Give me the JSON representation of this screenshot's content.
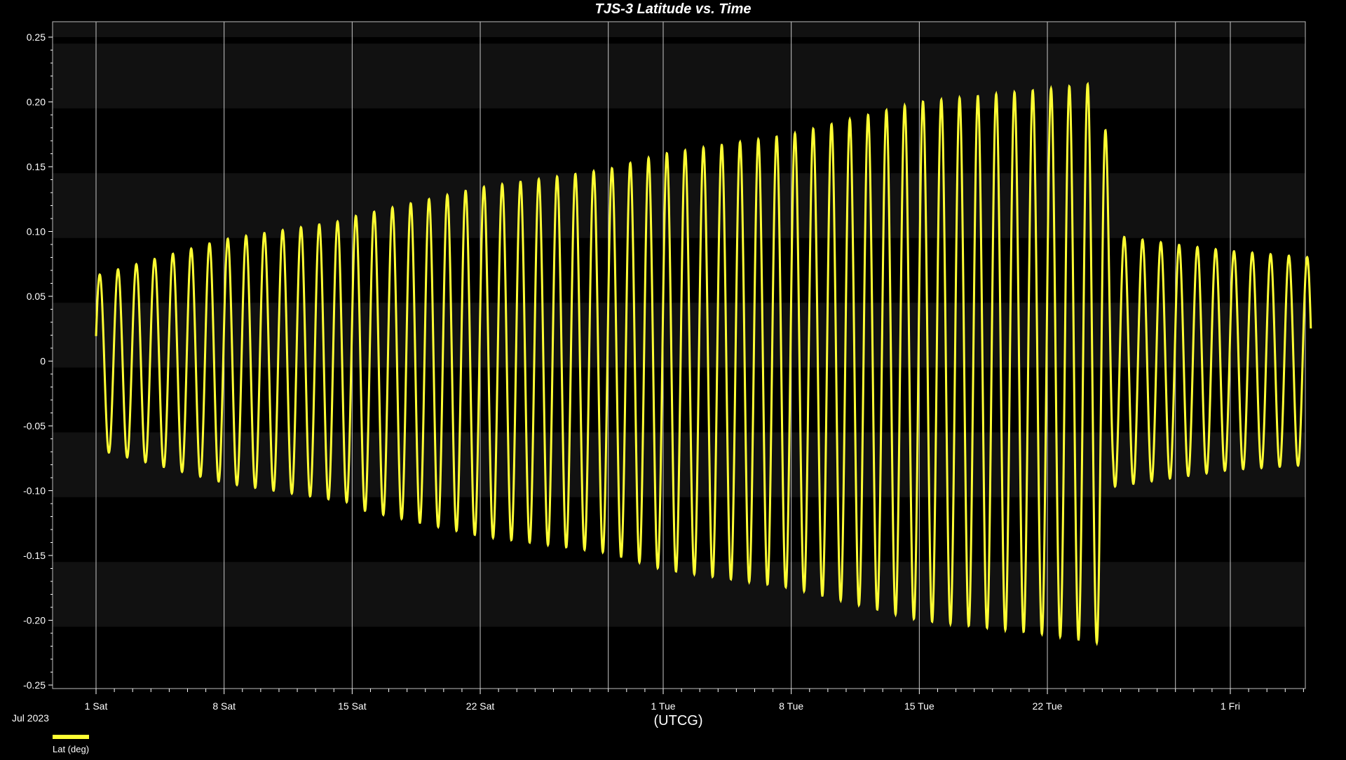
{
  "chart_data": {
    "type": "line",
    "title": "TJS-3 Latitude vs. Time",
    "xlabel": "(UTCG)",
    "ylabel": "",
    "month_label": "Jul 2023",
    "x_tick_labels": [
      {
        "day": 1,
        "label": "1 Sat"
      },
      {
        "day": 8,
        "label": "8 Sat"
      },
      {
        "day": 15,
        "label": "15 Sat"
      },
      {
        "day": 22,
        "label": "22 Sat"
      },
      {
        "day": 32,
        "label": "1 Tue"
      },
      {
        "day": 39,
        "label": "8 Tue"
      },
      {
        "day": 46,
        "label": "15 Tue"
      },
      {
        "day": 53,
        "label": "22 Tue"
      },
      {
        "day": 63,
        "label": "1 Fri"
      }
    ],
    "xlim_days": [
      1,
      67.4
    ],
    "ylim": [
      -0.255,
      0.263
    ],
    "y_ticks": [
      {
        "value": 0.25,
        "label": "0.25"
      },
      {
        "value": 0.2,
        "label": "0.20"
      },
      {
        "value": 0.15,
        "label": "0.15"
      },
      {
        "value": 0.1,
        "label": "0.10"
      },
      {
        "value": 0.05,
        "label": "0.05"
      },
      {
        "value": 0,
        "label": "0"
      },
      {
        "value": -0.05,
        "label": "-0.05"
      },
      {
        "value": -0.1,
        "label": "-0.10"
      },
      {
        "value": -0.15,
        "label": "-0.15"
      },
      {
        "value": -0.2,
        "label": "-0.20"
      },
      {
        "value": -0.25,
        "label": "-0.25"
      }
    ],
    "vertical_gridlines_days": [
      1,
      8,
      15,
      22,
      29,
      32,
      39,
      46,
      53,
      60,
      63
    ],
    "grid": true,
    "background_bands": true,
    "legend_position": "bottom-left",
    "series": [
      {
        "name": "Lat (deg)",
        "color": "#ffff33",
        "oscillation_period_days": 1.0,
        "phase_start_deg": 0.02,
        "envelope_points": [
          {
            "day": 1,
            "max": 0.066,
            "min": -0.068
          },
          {
            "day": 8,
            "max": 0.094,
            "min": -0.094
          },
          {
            "day": 14.8,
            "max": 0.109,
            "min": -0.109
          },
          {
            "day": 15.2,
            "max": 0.112,
            "min": -0.114
          },
          {
            "day": 22,
            "max": 0.134,
            "min": -0.135
          },
          {
            "day": 29,
            "max": 0.148,
            "min": -0.148
          },
          {
            "day": 32,
            "max": 0.16,
            "min": -0.161
          },
          {
            "day": 39,
            "max": 0.175,
            "min": -0.175
          },
          {
            "day": 46,
            "max": 0.2,
            "min": -0.2
          },
          {
            "day": 53,
            "max": 0.21,
            "min": -0.211
          },
          {
            "day": 56,
            "max": 0.215,
            "min": -0.218
          },
          {
            "day": 56.6,
            "max": 0.097,
            "min": -0.097
          },
          {
            "day": 60,
            "max": 0.09,
            "min": -0.09
          },
          {
            "day": 63,
            "max": 0.085,
            "min": -0.084
          },
          {
            "day": 67.4,
            "max": 0.08,
            "min": -0.08
          }
        ]
      }
    ]
  }
}
